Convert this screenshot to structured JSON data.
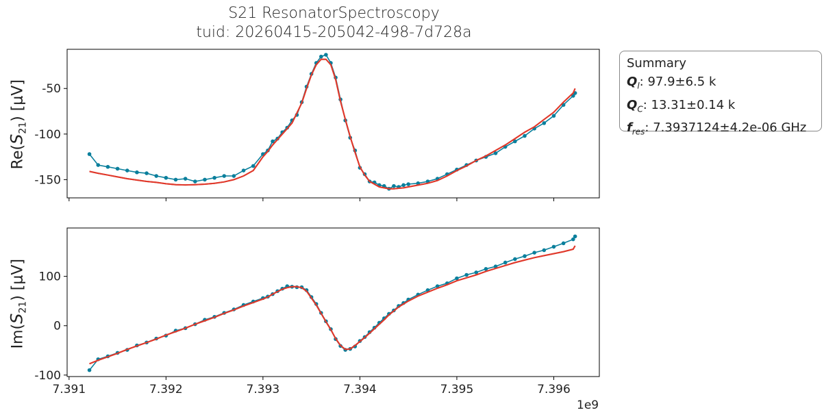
{
  "title": {
    "line1": "S21 ResonatorSpectroscopy",
    "line2": "tuid: 20260415-205042-498-7d728a"
  },
  "summary": {
    "heading": "Summary",
    "rows": [
      {
        "symbol": "Q",
        "sub": "l",
        "value": ": 97.9±6.5 k"
      },
      {
        "symbol": "Q",
        "sub": "C",
        "value": ": 13.31±0.14 k"
      },
      {
        "symbol": "f",
        "sub": "res",
        "value": ": 7.3937124±4.2e-06 GHz"
      }
    ]
  },
  "colors": {
    "data": "#0a7f9c",
    "fit": "#e0392b"
  },
  "chart_data": [
    {
      "type": "line",
      "ylabel": {
        "prefix": "Re(",
        "symbol": "S",
        "sub": "21",
        "suffix": ") [μV]"
      },
      "xlim": [
        7.39098,
        7.39647
      ],
      "ylim": [
        -170,
        -7
      ],
      "yticks": [
        -50,
        -100,
        -150
      ],
      "xticks": [
        7.391,
        7.392,
        7.393,
        7.394,
        7.395,
        7.396
      ],
      "x_tick_labels_shown": false,
      "x": [
        7.39121,
        7.3913,
        7.3914,
        7.3915,
        7.3916,
        7.3917,
        7.3918,
        7.3919,
        7.392,
        7.3921,
        7.3922,
        7.3923,
        7.3924,
        7.3925,
        7.3926,
        7.3927,
        7.3928,
        7.3929,
        7.393,
        7.39305,
        7.3931,
        7.39315,
        7.3932,
        7.39325,
        7.3933,
        7.39335,
        7.3934,
        7.39345,
        7.3935,
        7.39355,
        7.3936,
        7.39365,
        7.3937,
        7.39375,
        7.3938,
        7.39385,
        7.3939,
        7.39395,
        7.394,
        7.39405,
        7.3941,
        7.39415,
        7.3942,
        7.39425,
        7.3943,
        7.39435,
        7.3944,
        7.39445,
        7.3945,
        7.3946,
        7.3947,
        7.3948,
        7.3949,
        7.395,
        7.3951,
        7.3952,
        7.3953,
        7.3954,
        7.3955,
        7.3956,
        7.3957,
        7.3958,
        7.3959,
        7.396,
        7.3961,
        7.3962,
        7.39622
      ],
      "series": [
        {
          "role": "data",
          "values": [
            -122,
            -134,
            -136,
            -138,
            -140,
            -142,
            -143,
            -146,
            -148,
            -150,
            -149,
            -152,
            -150,
            -148,
            -146,
            -146,
            -140,
            -135,
            -122,
            -118,
            -108,
            -105,
            -98,
            -93,
            -85,
            -79,
            -65,
            -48,
            -34,
            -22,
            -15,
            -13,
            -22,
            -38,
            -62,
            -85,
            -104,
            -118,
            -137,
            -144,
            -152,
            -153,
            -156,
            -157,
            -160,
            -157,
            -158,
            -156,
            -155,
            -154,
            -152,
            -149,
            -144,
            -139,
            -134,
            -129,
            -125,
            -121,
            -114,
            -108,
            -102,
            -94,
            -88,
            -80,
            -68,
            -58,
            -55
          ]
        },
        {
          "role": "fit",
          "values": [
            -141,
            -143,
            -145,
            -147,
            -149,
            -150.5,
            -152,
            -153,
            -154.5,
            -155.5,
            -155.8,
            -155.5,
            -155,
            -154,
            -152.5,
            -150,
            -146,
            -140,
            -125,
            -119,
            -112,
            -106,
            -100,
            -94,
            -88,
            -77,
            -66,
            -50,
            -35,
            -24,
            -18,
            -18,
            -24,
            -40,
            -64,
            -84,
            -103,
            -120,
            -136,
            -145,
            -152,
            -155,
            -158,
            -159,
            -160,
            -160,
            -159.5,
            -159,
            -158,
            -156,
            -154,
            -151,
            -146,
            -140,
            -135,
            -129,
            -124,
            -118,
            -112,
            -105,
            -98,
            -92,
            -84,
            -76,
            -65,
            -55,
            -50
          ]
        }
      ]
    },
    {
      "type": "line",
      "ylabel": {
        "prefix": "Im(",
        "symbol": "S",
        "sub": "21",
        "suffix": ") [μV]"
      },
      "xlim": [
        7.39098,
        7.39647
      ],
      "ylim": [
        -103,
        198
      ],
      "yticks": [
        100,
        0,
        -100
      ],
      "xticks": [
        7.391,
        7.392,
        7.393,
        7.394,
        7.395,
        7.396
      ],
      "xtick_labels": [
        "7.391",
        "7.392",
        "7.393",
        "7.394",
        "7.395",
        "7.396"
      ],
      "x_offset_label": "1e9",
      "x": [
        7.39121,
        7.3913,
        7.3914,
        7.3915,
        7.3916,
        7.3917,
        7.3918,
        7.3919,
        7.392,
        7.3921,
        7.3922,
        7.3923,
        7.3924,
        7.3925,
        7.3926,
        7.3927,
        7.3928,
        7.3929,
        7.393,
        7.39305,
        7.3931,
        7.39315,
        7.3932,
        7.39325,
        7.3933,
        7.39335,
        7.3934,
        7.39345,
        7.3935,
        7.39355,
        7.3936,
        7.39365,
        7.3937,
        7.39375,
        7.3938,
        7.39385,
        7.3939,
        7.39395,
        7.394,
        7.39405,
        7.3941,
        7.39415,
        7.3942,
        7.39425,
        7.3943,
        7.39435,
        7.3944,
        7.39445,
        7.3945,
        7.3946,
        7.3947,
        7.3948,
        7.3949,
        7.395,
        7.3951,
        7.3952,
        7.3953,
        7.3954,
        7.3955,
        7.3956,
        7.3957,
        7.3958,
        7.3959,
        7.396,
        7.3961,
        7.3962,
        7.39622
      ],
      "series": [
        {
          "role": "data",
          "values": [
            -90,
            -68,
            -62,
            -55,
            -49,
            -40,
            -34,
            -26,
            -20,
            -10,
            -5,
            3,
            12,
            18,
            26,
            33,
            42,
            49,
            56,
            59,
            64,
            70,
            75,
            80,
            79,
            78,
            78,
            72,
            58,
            44,
            26,
            9,
            -7,
            -27,
            -41,
            -49,
            -47,
            -42,
            -31,
            -23,
            -13,
            -4,
            6,
            15,
            24,
            31,
            40,
            46,
            53,
            63,
            72,
            80,
            86,
            96,
            103,
            108,
            115,
            120,
            128,
            135,
            141,
            148,
            153,
            160,
            167,
            175,
            181
          ]
        },
        {
          "role": "fit",
          "values": [
            -77,
            -70,
            -63,
            -56,
            -48,
            -41,
            -34,
            -27,
            -19,
            -12,
            -5,
            3,
            10,
            17,
            25,
            32,
            40,
            47,
            54,
            58,
            64,
            69,
            74,
            77,
            79,
            79,
            77,
            70,
            56,
            42,
            25,
            8,
            -8,
            -26,
            -40,
            -48,
            -47,
            -40,
            -32,
            -24,
            -15,
            -6,
            3,
            12,
            22,
            30,
            38,
            44,
            50,
            60,
            68,
            76,
            83,
            91,
            97,
            103,
            110,
            116,
            122,
            128,
            133,
            138,
            142,
            146,
            150,
            155,
            162
          ]
        }
      ]
    }
  ]
}
